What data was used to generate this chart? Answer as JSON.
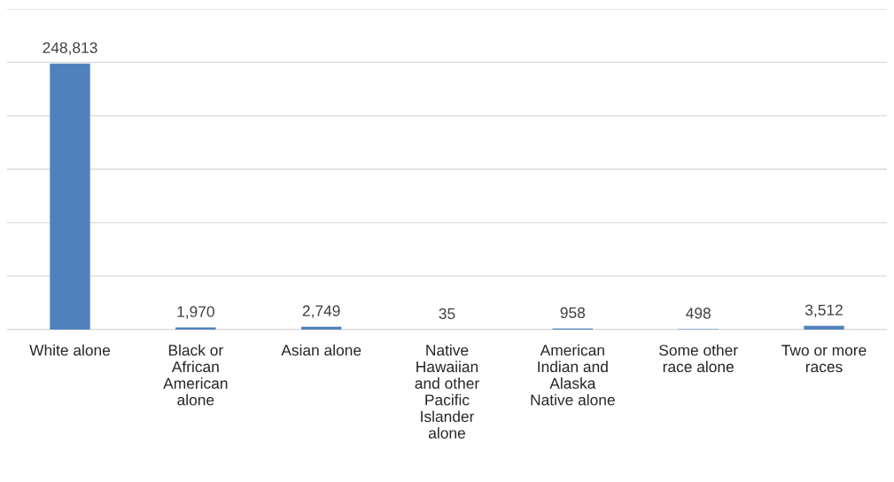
{
  "chart_data": {
    "type": "bar",
    "categories": [
      "White alone",
      "Black or African American alone",
      "Asian alone",
      "Native Hawaiian and other Pacific Islander alone",
      "American Indian and Alaska Native alone",
      "Some other race alone",
      "Two or more races"
    ],
    "values": [
      248813,
      1970,
      2749,
      35,
      958,
      498,
      3512
    ],
    "color": "#4f81bd",
    "value_labels": [
      "248,813",
      "1,970",
      "2,749",
      "35",
      "958",
      "498",
      "3,512"
    ],
    "ylim": [
      0,
      300000
    ],
    "yticks": [
      {
        "value": 0,
        "label": null
      },
      {
        "value": 50000,
        "label": null
      },
      {
        "value": 100000,
        "label": null
      },
      {
        "value": 150000,
        "label": null
      },
      {
        "value": 200000,
        "label": null
      },
      {
        "value": 250000,
        "label": null
      },
      {
        "value": 300000,
        "label": null
      }
    ],
    "grid": "y",
    "tick_labels": "x"
  }
}
